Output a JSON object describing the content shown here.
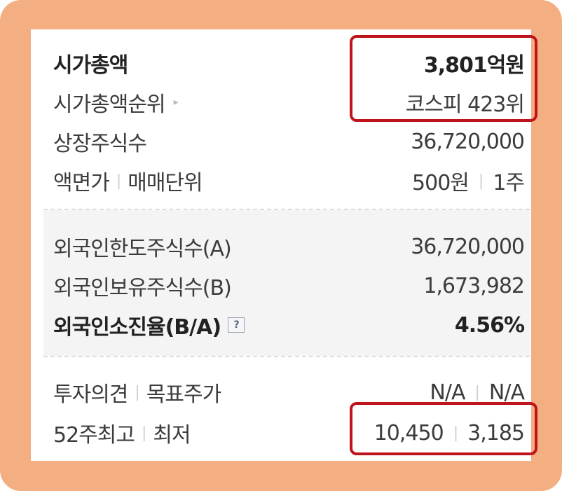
{
  "rows": {
    "market_cap": {
      "label": "시가총액",
      "value": "3,801억원"
    },
    "market_cap_rank": {
      "label": "시가총액순위",
      "value": "코스피 423위"
    },
    "listed_shares": {
      "label": "상장주식수",
      "value": "36,720,000"
    },
    "par_value": {
      "label1": "액면가",
      "label2": "매매단위",
      "value1": "500원",
      "value2": "1주"
    },
    "foreign_limit": {
      "label": "외국인한도주식수(A)",
      "value": "36,720,000"
    },
    "foreign_hold": {
      "label": "외국인보유주식수(B)",
      "value": "1,673,982"
    },
    "foreign_ratio": {
      "label": "외국인소진율(B/A)",
      "value": "4.56%"
    },
    "opinion": {
      "label1": "투자의견",
      "label2": "목표주가",
      "value1": "N/A",
      "value2": "N/A"
    },
    "week52": {
      "label1": "52주최고",
      "label2": "최저",
      "value1": "10,450",
      "value2": "3,185"
    }
  },
  "separator": "|",
  "help_glyph": "?",
  "rank_arrow": "▸",
  "colors": {
    "frame": "#f3ae82",
    "highlight": "#c0141c",
    "block": "#f4f4f4"
  }
}
